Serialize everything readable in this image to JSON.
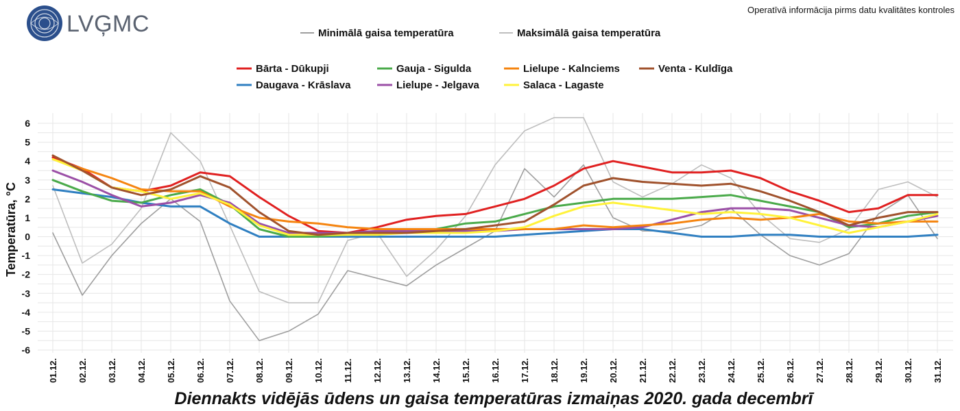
{
  "header": {
    "logo_text": "LVĢMC",
    "notice": "Operatīvā informācija pirms datu kvalitātes kontroles"
  },
  "chart_data": {
    "type": "line",
    "title": "Diennakts vidējās ūdens un gaisa temperatūras izmaiņas 2020. gada decembrī",
    "xlabel": "",
    "ylabel": "Temperatūra, °C",
    "ylim": [
      -6,
      6
    ],
    "yticks": [
      "-6",
      "-5",
      "-4",
      "-3",
      "-2",
      "-1",
      "0",
      "1",
      "2",
      "3",
      "4",
      "5",
      "6"
    ],
    "categories": [
      "01.12.",
      "02.12.",
      "03.12.",
      "04.12.",
      "05.12.",
      "06.12.",
      "07.12.",
      "08.12.",
      "09.12.",
      "10.12.",
      "11.12.",
      "12.12.",
      "13.12.",
      "14.12.",
      "15.12.",
      "16.12.",
      "17.12.",
      "18.12.",
      "19.12.",
      "20.12.",
      "21.12.",
      "22.12.",
      "23.12.",
      "24.12.",
      "25.12.",
      "26.12.",
      "27.12.",
      "28.12.",
      "29.12.",
      "30.12.",
      "31.12."
    ],
    "air_series": [
      {
        "name": "Minimālā gaisa temperatūra",
        "color": "#9e9e9e",
        "values": [
          0.2,
          -3.1,
          -1.0,
          0.7,
          2.0,
          0.8,
          -3.4,
          -5.5,
          -5.0,
          -4.1,
          -1.8,
          -2.2,
          -2.6,
          -1.5,
          -0.6,
          0.3,
          3.6,
          2.1,
          3.8,
          1.0,
          0.3,
          0.3,
          0.6,
          1.5,
          0.1,
          -1.0,
          -1.5,
          -0.9,
          1.2,
          2.2,
          -0.1
        ]
      },
      {
        "name": "Maksimālā gaisa temperatūra",
        "color": "#bdbdbd",
        "values": [
          2.7,
          -1.4,
          -0.4,
          1.5,
          5.5,
          4.0,
          0.6,
          -2.9,
          -3.5,
          -3.5,
          -0.2,
          0.2,
          -2.1,
          -0.7,
          1.1,
          3.8,
          5.6,
          6.3,
          6.3,
          2.9,
          2.1,
          2.8,
          3.8,
          3.1,
          1.2,
          -0.1,
          -0.3,
          0.4,
          2.5,
          2.9,
          2.1
        ]
      }
    ],
    "series": [
      {
        "name": "Bārta - Dūkupji",
        "color": "#e02020",
        "values": [
          4.2,
          3.6,
          2.6,
          2.4,
          2.7,
          3.4,
          3.2,
          2.1,
          1.1,
          0.3,
          0.2,
          0.5,
          0.9,
          1.1,
          1.2,
          1.6,
          2.0,
          2.7,
          3.6,
          4.0,
          3.7,
          3.4,
          3.4,
          3.5,
          3.1,
          2.4,
          1.9,
          1.3,
          1.5,
          2.2,
          2.2
        ]
      },
      {
        "name": "Daugava - Krāslava",
        "color": "#2f7fc1",
        "values": [
          2.5,
          2.3,
          2.1,
          1.8,
          1.6,
          1.6,
          0.7,
          0.0,
          0.0,
          0.0,
          0.0,
          0.0,
          0.0,
          0.0,
          0.0,
          0.0,
          0.1,
          0.2,
          0.3,
          0.4,
          0.4,
          0.2,
          0.0,
          0.0,
          0.1,
          0.1,
          0.0,
          0.0,
          0.0,
          0.0,
          0.1
        ]
      },
      {
        "name": "Gauja - Sigulda",
        "color": "#4aaa4a",
        "values": [
          3.0,
          2.4,
          1.9,
          1.8,
          2.2,
          2.5,
          1.7,
          0.4,
          0.0,
          0.0,
          0.1,
          0.2,
          0.3,
          0.4,
          0.7,
          0.8,
          1.2,
          1.6,
          1.8,
          2.0,
          2.0,
          2.0,
          2.1,
          2.2,
          1.9,
          1.6,
          1.3,
          0.5,
          0.7,
          1.1,
          1.3
        ]
      },
      {
        "name": "Lielupe - Jelgava",
        "color": "#9b4fa6",
        "values": [
          3.5,
          2.9,
          2.2,
          1.6,
          1.8,
          2.2,
          1.8,
          0.7,
          0.2,
          0.2,
          0.2,
          0.3,
          0.3,
          0.3,
          0.3,
          0.3,
          0.4,
          0.4,
          0.4,
          0.4,
          0.5,
          0.9,
          1.3,
          1.5,
          1.5,
          1.4,
          1.0,
          0.6,
          0.5,
          0.8,
          1.1
        ]
      },
      {
        "name": "Lielupe - Kalnciems",
        "color": "#f5840f",
        "values": [
          4.1,
          3.6,
          3.1,
          2.5,
          2.4,
          2.4,
          1.6,
          1.0,
          0.8,
          0.7,
          0.5,
          0.4,
          0.4,
          0.4,
          0.4,
          0.4,
          0.4,
          0.4,
          0.6,
          0.5,
          0.6,
          0.7,
          0.9,
          1.0,
          0.9,
          1.0,
          1.2,
          0.8,
          0.7,
          0.8,
          0.8
        ]
      },
      {
        "name": "Salaca - Lagaste",
        "color": "#fff23a",
        "values": [
          4.1,
          3.5,
          2.6,
          2.4,
          2.0,
          2.3,
          1.7,
          0.6,
          0.1,
          0.1,
          0.1,
          0.1,
          0.2,
          0.2,
          0.2,
          0.3,
          0.5,
          1.1,
          1.6,
          1.8,
          1.6,
          1.4,
          1.2,
          1.3,
          1.2,
          1.0,
          0.6,
          0.2,
          0.5,
          0.8,
          1.2
        ]
      },
      {
        "name": "Venta - Kuldīga",
        "color": "#a0522d",
        "values": [
          4.3,
          3.5,
          2.6,
          2.2,
          2.5,
          3.2,
          2.6,
          1.3,
          0.3,
          0.1,
          0.2,
          0.2,
          0.2,
          0.3,
          0.4,
          0.6,
          0.8,
          1.7,
          2.7,
          3.1,
          2.9,
          2.8,
          2.7,
          2.8,
          2.4,
          1.9,
          1.3,
          0.6,
          1.0,
          1.3,
          1.3
        ]
      }
    ]
  }
}
